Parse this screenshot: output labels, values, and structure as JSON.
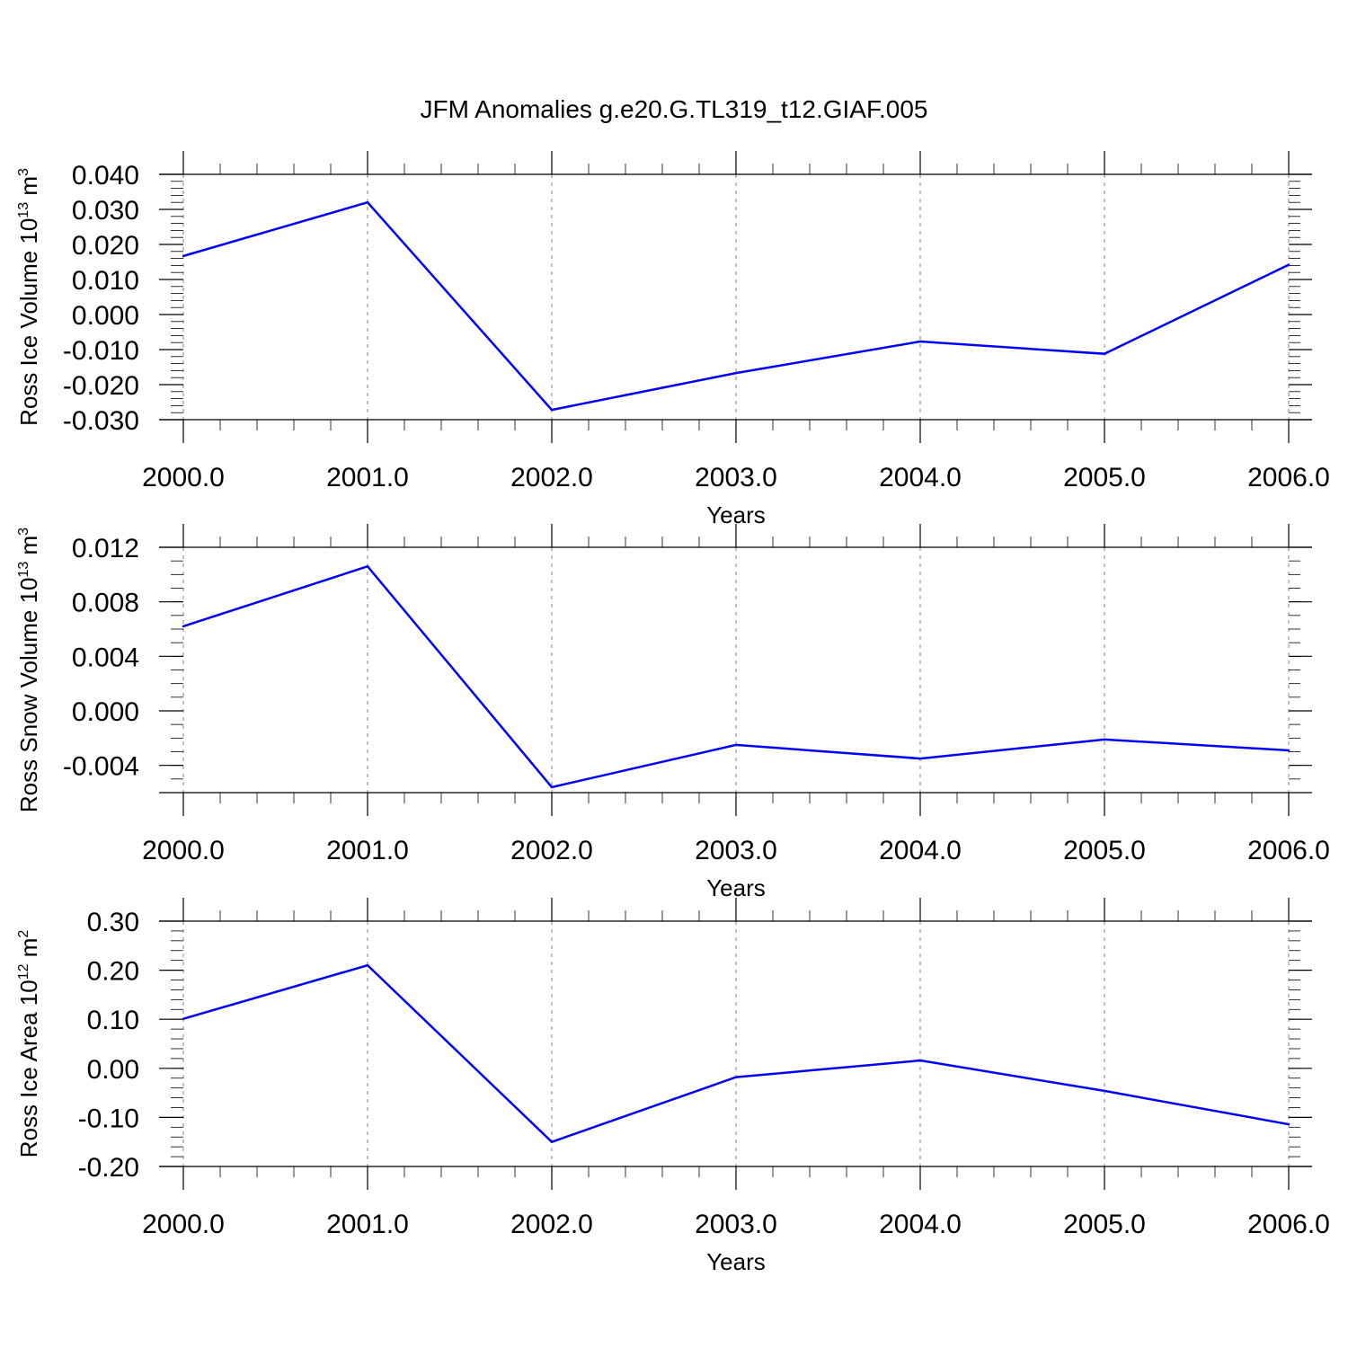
{
  "title": "JFM Anomalies g.e20.G.TL319_t12.GIAF.005",
  "colors": {
    "series": "#0000ff",
    "axis": "#000000",
    "grid": "#808080"
  },
  "chart_data": [
    {
      "type": "line",
      "ylabel": "Ross Ice Volume 10",
      "ylabel_sup": "13",
      "ylabel_unit": " m",
      "ylabel_unit_sup": "3",
      "xlabel": "Years",
      "x": [
        2000,
        2001,
        2002,
        2003,
        2004,
        2005,
        2006
      ],
      "xlim": [
        2000,
        2006
      ],
      "xticks": [
        2000,
        2001,
        2002,
        2003,
        2004,
        2005,
        2006
      ],
      "xtick_labels": [
        "2000.0",
        "2001.0",
        "2002.0",
        "2003.0",
        "2004.0",
        "2005.0",
        "2006.0"
      ],
      "ylim": [
        -0.03,
        0.04
      ],
      "yticks": [
        0.04,
        0.03,
        0.02,
        0.01,
        0.0,
        -0.01,
        -0.02,
        -0.03
      ],
      "ytick_labels": [
        "0.040",
        "0.030",
        "0.020",
        "0.010",
        "0.000",
        "-0.010",
        "-0.020",
        "-0.030"
      ],
      "yminor_step": 0.002,
      "grid": "vertical dashed",
      "series": [
        {
          "values": [
            0.0167,
            0.032,
            -0.0272,
            -0.0167,
            -0.0077,
            -0.0112,
            0.0142
          ]
        }
      ]
    },
    {
      "type": "line",
      "ylabel": "Ross Snow Volume 10",
      "ylabel_sup": "13",
      "ylabel_unit": " m",
      "ylabel_unit_sup": "3",
      "xlabel": "Years",
      "x": [
        2000,
        2001,
        2002,
        2003,
        2004,
        2005,
        2006
      ],
      "xlim": [
        2000,
        2006
      ],
      "xticks": [
        2000,
        2001,
        2002,
        2003,
        2004,
        2005,
        2006
      ],
      "xtick_labels": [
        "2000.0",
        "2001.0",
        "2002.0",
        "2003.0",
        "2004.0",
        "2005.0",
        "2006.0"
      ],
      "ylim": [
        -0.006,
        0.012
      ],
      "yticks": [
        0.012,
        0.008,
        0.004,
        0.0,
        -0.004
      ],
      "ytick_labels": [
        "0.012",
        "0.008",
        "0.004",
        "0.000",
        "-0.004"
      ],
      "yminor_step": 0.001,
      "grid": "vertical dashed",
      "series": [
        {
          "values": [
            0.0062,
            0.0106,
            -0.0056,
            -0.0025,
            -0.0035,
            -0.0021,
            -0.0029
          ]
        }
      ]
    },
    {
      "type": "line",
      "ylabel": "Ross Ice Area 10",
      "ylabel_sup": "12",
      "ylabel_unit": " m",
      "ylabel_unit_sup": "2",
      "xlabel": "Years",
      "x": [
        2000,
        2001,
        2002,
        2003,
        2004,
        2005,
        2006
      ],
      "xlim": [
        2000,
        2006
      ],
      "xticks": [
        2000,
        2001,
        2002,
        2003,
        2004,
        2005,
        2006
      ],
      "xtick_labels": [
        "2000.0",
        "2001.0",
        "2002.0",
        "2003.0",
        "2004.0",
        "2005.0",
        "2006.0"
      ],
      "ylim": [
        -0.2,
        0.3
      ],
      "yticks": [
        0.3,
        0.2,
        0.1,
        0.0,
        -0.1,
        -0.2
      ],
      "ytick_labels": [
        "0.30",
        "0.20",
        "0.10",
        "0.00",
        "-0.10",
        "-0.20"
      ],
      "yminor_step": 0.02,
      "grid": "vertical dashed",
      "series": [
        {
          "values": [
            0.101,
            0.21,
            -0.15,
            -0.018,
            0.016,
            -0.046,
            -0.114
          ]
        }
      ]
    }
  ]
}
